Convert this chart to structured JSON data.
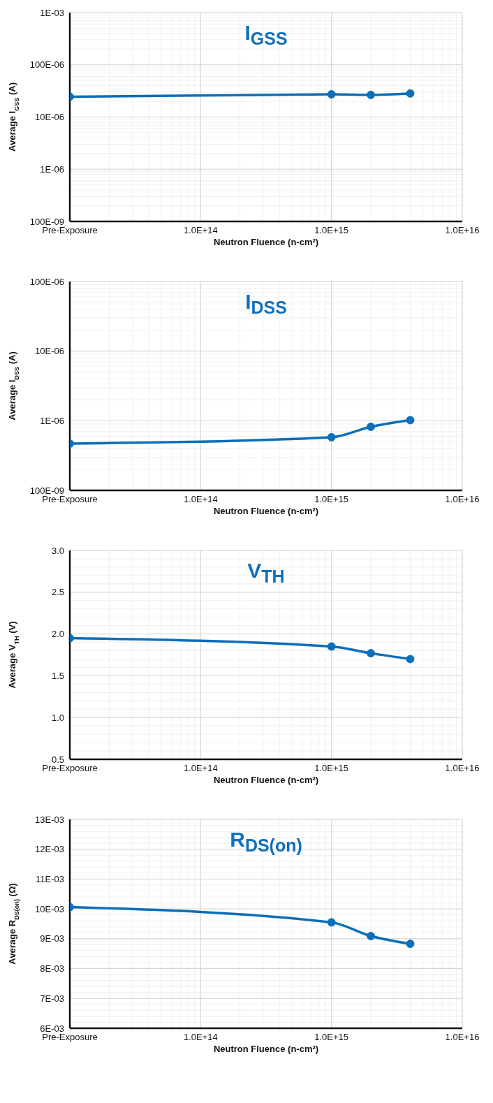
{
  "chart_data": [
    {
      "type": "line",
      "title": "I$_{GSS}$",
      "xlabel": "Neutron Fluence (n-cm²)",
      "ylabel": "Average I$_{GSS}$ (A)",
      "log": "xy",
      "grid": true,
      "marker": "circle",
      "line_style": "solid",
      "x": [
        10000000000000.0,
        1000000000000000.0,
        2000000000000000.0,
        4000000000000000.0
      ],
      "series": [
        {
          "color": "#0b6fba",
          "values": [
            2.45e-05,
            2.72e-05,
            2.65e-05,
            2.83e-05
          ]
        }
      ],
      "xlim": [
        10000000000000.0,
        1e+16
      ],
      "xticks": [
        {
          "value": 10000000000000.0,
          "label": "Pre-Exposure"
        },
        {
          "value": 100000000000000.0,
          "label": "1.0E+14"
        },
        {
          "value": 1000000000000000.0,
          "label": "1.0E+15"
        },
        {
          "value": 1e+16,
          "label": "1.0E+16"
        }
      ],
      "ylim": [
        1e-07,
        0.001
      ],
      "yticks": [
        {
          "value": 1e-07,
          "label": "100E-09"
        },
        {
          "value": 1e-06,
          "label": "1E-06"
        },
        {
          "value": 1e-05,
          "label": "10E-06"
        },
        {
          "value": 0.0001,
          "label": "100E-06"
        },
        {
          "value": 0.001,
          "label": "1E-03"
        }
      ]
    },
    {
      "type": "line",
      "title": "I$_{DSS}$",
      "xlabel": "Neutron Fluence (n-cm²)",
      "ylabel": "Average I$_{DSS}$ (A)",
      "log": "xy",
      "grid": true,
      "marker": "circle",
      "line_style": "solid",
      "x": [
        10000000000000.0,
        1000000000000000.0,
        2000000000000000.0,
        4000000000000000.0
      ],
      "series": [
        {
          "color": "#0b6fba",
          "values": [
            4.7e-07,
            5.8e-07,
            8.2e-07,
            1.02e-06
          ]
        }
      ],
      "xlim": [
        10000000000000.0,
        1e+16
      ],
      "xticks": [
        {
          "value": 10000000000000.0,
          "label": "Pre-Exposure"
        },
        {
          "value": 100000000000000.0,
          "label": "1.0E+14"
        },
        {
          "value": 1000000000000000.0,
          "label": "1.0E+15"
        },
        {
          "value": 1e+16,
          "label": "1.0E+16"
        }
      ],
      "ylim": [
        1e-07,
        0.0001
      ],
      "yticks": [
        {
          "value": 1e-07,
          "label": "100E-09"
        },
        {
          "value": 1e-06,
          "label": "1E-06"
        },
        {
          "value": 1e-05,
          "label": "10E-06"
        },
        {
          "value": 0.0001,
          "label": "100E-06"
        }
      ]
    },
    {
      "type": "line",
      "title": "V$_{TH}$",
      "xlabel": "Neutron Fluence (n-cm²)",
      "ylabel": "Average V$_{TH}$ (V)",
      "log": "x",
      "grid": true,
      "marker": "circle",
      "line_style": "solid",
      "x": [
        10000000000000.0,
        1000000000000000.0,
        2000000000000000.0,
        4000000000000000.0
      ],
      "series": [
        {
          "color": "#0b6fba",
          "values": [
            1.95,
            1.85,
            1.77,
            1.7
          ]
        }
      ],
      "xlim": [
        10000000000000.0,
        1e+16
      ],
      "xticks": [
        {
          "value": 10000000000000.0,
          "label": "Pre-Exposure"
        },
        {
          "value": 100000000000000.0,
          "label": "1.0E+14"
        },
        {
          "value": 1000000000000000.0,
          "label": "1.0E+15"
        },
        {
          "value": 1e+16,
          "label": "1.0E+16"
        }
      ],
      "ylim": [
        0.5,
        3.0
      ],
      "yticks": [
        {
          "value": 0.5,
          "label": "0.5"
        },
        {
          "value": 1,
          "label": "1.0"
        },
        {
          "value": 1.5,
          "label": "1.5"
        },
        {
          "value": 2,
          "label": "2.0"
        },
        {
          "value": 2.5,
          "label": "2.5"
        },
        {
          "value": 3,
          "label": "3.0"
        }
      ]
    },
    {
      "type": "line",
      "title": "R$_{DS(on)}$",
      "xlabel": "Neutron Fluence (n-cm²)",
      "ylabel": "Average R$_{DS(on)}$ (Ω)",
      "log": "x",
      "grid": true,
      "marker": "circle",
      "line_style": "solid",
      "x": [
        10000000000000.0,
        1000000000000000.0,
        2000000000000000.0,
        4000000000000000.0
      ],
      "series": [
        {
          "color": "#0b6fba",
          "values": [
            0.01006,
            0.00955,
            0.00909,
            0.00883
          ]
        }
      ],
      "xlim": [
        10000000000000.0,
        1e+16
      ],
      "xticks": [
        {
          "value": 10000000000000.0,
          "label": "Pre-Exposure"
        },
        {
          "value": 100000000000000.0,
          "label": "1.0E+14"
        },
        {
          "value": 1000000000000000.0,
          "label": "1.0E+15"
        },
        {
          "value": 1e+16,
          "label": "1.0E+16"
        }
      ],
      "ylim": [
        0.006,
        0.013
      ],
      "yticks": [
        {
          "value": 0.006,
          "label": "6E-03"
        },
        {
          "value": 0.007,
          "label": "7E-03"
        },
        {
          "value": 0.008,
          "label": "8E-03"
        },
        {
          "value": 0.009,
          "label": "9E-03"
        },
        {
          "value": 0.01,
          "label": "10E-03"
        },
        {
          "value": 0.011,
          "label": "11E-03"
        },
        {
          "value": 0.012,
          "label": "12E-03"
        },
        {
          "value": 0.013,
          "label": "13E-03"
        }
      ]
    }
  ]
}
